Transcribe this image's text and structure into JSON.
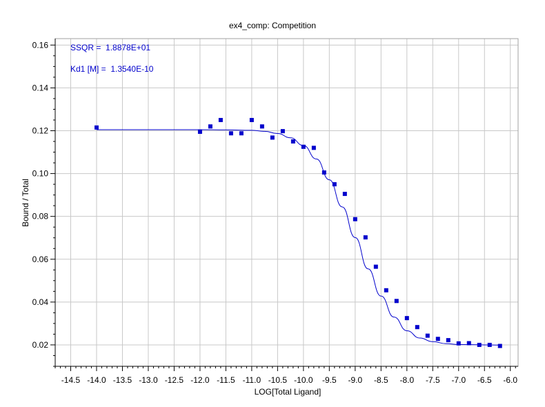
{
  "chart_data": {
    "type": "scatter",
    "title": "ex4_comp: Competition",
    "xlabel": "LOG[Total Ligand]",
    "ylabel": "Bound / Total",
    "xlim": [
      -14.8,
      -5.85
    ],
    "ylim": [
      0.01,
      0.163
    ],
    "x_ticks": [
      -14.5,
      -14.0,
      -13.5,
      -13.0,
      -12.5,
      -12.0,
      -11.5,
      -11.0,
      -10.5,
      -10.0,
      -9.5,
      -9.0,
      -8.5,
      -8.0,
      -7.5,
      -7.0,
      -6.5,
      -6.0
    ],
    "x_tick_labels": [
      "-14.5",
      "-14.0",
      "-13.5",
      "-13.0",
      "-12.5",
      "-12.0",
      "-11.5",
      "-11.0",
      "-10.5",
      "-10.0",
      "-9.5",
      "-9.0",
      "-8.5",
      "-8.0",
      "-7.5",
      "-7.0",
      "-6.5",
      "-6.0"
    ],
    "y_ticks": [
      0.02,
      0.04,
      0.06,
      0.08,
      0.1,
      0.12,
      0.14,
      0.16
    ],
    "y_tick_labels": [
      "0.02",
      "0.04",
      "0.06",
      "0.08",
      "0.10",
      "0.12",
      "0.14",
      "0.16"
    ],
    "grid": true,
    "series_color": "#0000cc",
    "points": {
      "x": [
        -14.0,
        -12.0,
        -11.8,
        -11.6,
        -11.4,
        -11.2,
        -11.0,
        -10.8,
        -10.6,
        -10.4,
        -10.2,
        -10.0,
        -9.8,
        -9.6,
        -9.4,
        -9.2,
        -9.0,
        -8.8,
        -8.6,
        -8.4,
        -8.2,
        -8.0,
        -7.8,
        -7.6,
        -7.4,
        -7.2,
        -7.0,
        -6.8,
        -6.6,
        -6.4,
        -6.2
      ],
      "y": [
        0.1215,
        0.1195,
        0.122,
        0.125,
        0.1188,
        0.1188,
        0.125,
        0.122,
        0.1168,
        0.1198,
        0.115,
        0.1125,
        0.112,
        0.1005,
        0.095,
        0.0905,
        0.0787,
        0.0702,
        0.0565,
        0.0455,
        0.0405,
        0.0325,
        0.0283,
        0.0243,
        0.0228,
        0.0222,
        0.0207,
        0.0208,
        0.02,
        0.02,
        0.0195
      ]
    },
    "fit": {
      "x": [
        -14.0,
        -13.5,
        -13.0,
        -12.5,
        -12.0,
        -11.5,
        -11.0,
        -10.75,
        -10.5,
        -10.25,
        -10.0,
        -9.75,
        -9.5,
        -9.25,
        -9.0,
        -8.75,
        -8.5,
        -8.25,
        -8.0,
        -7.75,
        -7.5,
        -7.25,
        -7.0,
        -6.75,
        -6.5,
        -6.2
      ],
      "y": [
        0.1205,
        0.1205,
        0.1205,
        0.1205,
        0.1205,
        0.1204,
        0.1202,
        0.1197,
        0.1187,
        0.1167,
        0.1131,
        0.1068,
        0.0971,
        0.0844,
        0.0701,
        0.0555,
        0.0428,
        0.033,
        0.0266,
        0.0232,
        0.0215,
        0.0206,
        0.0202,
        0.0201,
        0.02,
        0.0199
      ]
    },
    "annotations": [
      "SSQR =  1.8878E+01",
      "Kd1 [M] =  1.3540E-10"
    ]
  }
}
